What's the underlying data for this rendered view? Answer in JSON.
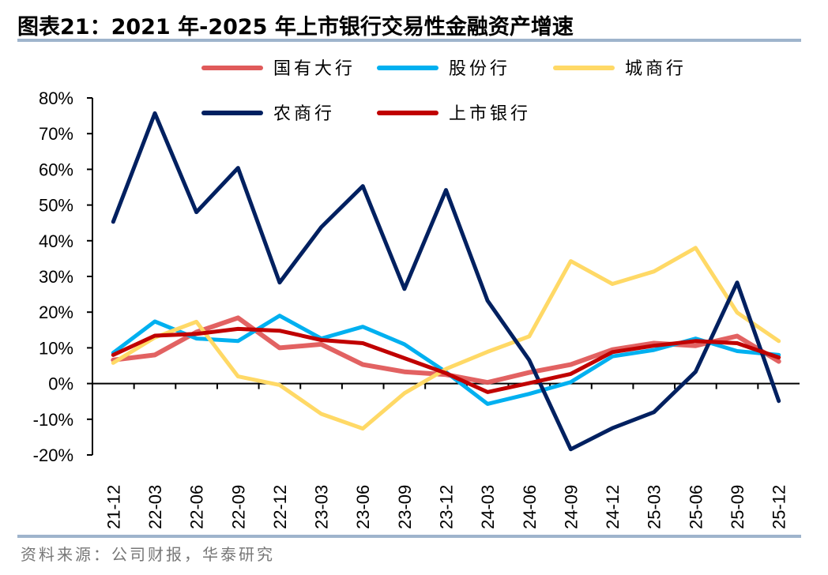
{
  "header": {
    "title": "图表21：2021 年-2025 年上市银行交易性金融资产增速"
  },
  "footer": {
    "source": "资料来源：公司财报，华泰研究"
  },
  "chart_data": {
    "type": "line",
    "title": "2021 年-2025 年上市银行交易性金融资产增速",
    "xlabel": "",
    "ylabel": "",
    "ylim": [
      -20,
      80
    ],
    "ytick_step": 10,
    "y_format": "percent",
    "yticks": [
      "80%",
      "70%",
      "60%",
      "50%",
      "40%",
      "30%",
      "20%",
      "10%",
      "0%",
      "-10%",
      "-20%"
    ],
    "grid": false,
    "legend_position": "top",
    "categories": [
      "21-12",
      "22-03",
      "22-06",
      "22-09",
      "22-12",
      "23-03",
      "23-06",
      "23-09",
      "23-12",
      "24-03",
      "24-06",
      "24-09",
      "24-12",
      "25-03",
      "25-06",
      "25-09",
      "25-12"
    ],
    "series": [
      {
        "name": "国有大行",
        "color": "#e05a5a",
        "values": [
          6.6,
          8.0,
          14.4,
          18.4,
          10.0,
          11.0,
          5.3,
          3.3,
          2.5,
          0.3,
          3.1,
          5.3,
          9.5,
          11.3,
          10.6,
          13.3,
          6.2
        ]
      },
      {
        "name": "股份行",
        "color": "#00b0f0",
        "values": [
          8.6,
          17.4,
          12.6,
          11.9,
          19.0,
          12.6,
          15.9,
          11.0,
          3.2,
          -5.7,
          -2.9,
          0.4,
          7.6,
          9.4,
          12.6,
          9.1,
          8.0
        ]
      },
      {
        "name": "城商行",
        "color": "#ffd966",
        "values": [
          5.8,
          12.9,
          17.3,
          2.0,
          -0.4,
          -8.5,
          -12.6,
          -2.7,
          4.1,
          8.9,
          13.2,
          34.3,
          27.9,
          31.4,
          38.0,
          19.9,
          11.9
        ]
      },
      {
        "name": "农商行",
        "color": "#002060",
        "values": [
          45.3,
          75.7,
          48.0,
          60.4,
          28.3,
          43.8,
          55.3,
          26.5,
          54.2,
          23.2,
          6.6,
          -18.4,
          -12.5,
          -8.0,
          3.3,
          28.3,
          -4.9
        ]
      },
      {
        "name": "上市银行",
        "color": "#c00000",
        "values": [
          8.0,
          13.4,
          13.9,
          15.3,
          14.8,
          12.2,
          11.3,
          7.1,
          2.9,
          -2.4,
          0.1,
          2.7,
          8.8,
          10.6,
          11.9,
          11.3,
          7.3
        ]
      }
    ]
  }
}
